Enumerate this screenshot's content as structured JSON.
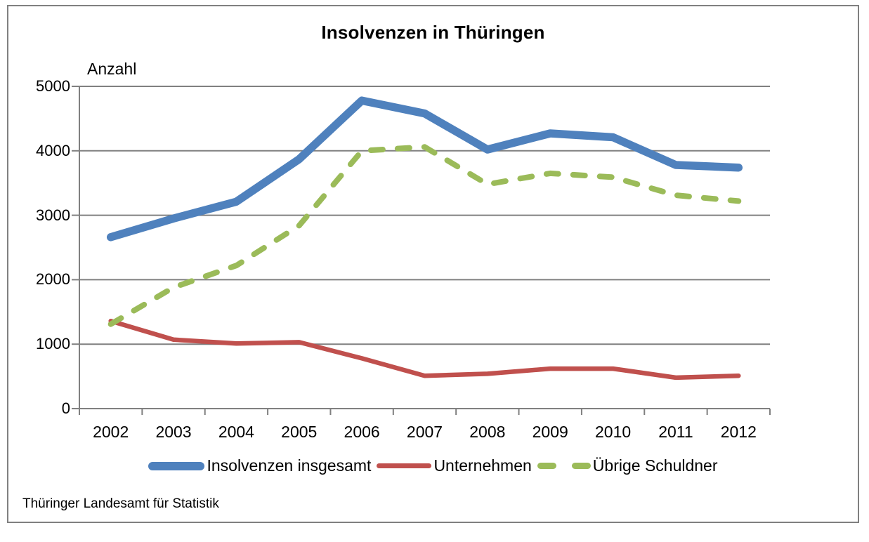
{
  "source": "Thüringer Landesamt für Statistik",
  "colors": {
    "total": "#4F81BD",
    "companies": "#C0504D",
    "other_debtors": "#9BBB59",
    "grid": "#808080",
    "text": "#000000"
  },
  "chart_data": {
    "type": "line",
    "title": "Insolvenzen in Thüringen",
    "ylabel": "Anzahl",
    "xlabel": "",
    "categories": [
      "2002",
      "2003",
      "2004",
      "2005",
      "2006",
      "2007",
      "2008",
      "2009",
      "2010",
      "2011",
      "2012"
    ],
    "series": [
      {
        "name": "Insolvenzen insgesamt",
        "color_key": "total",
        "style": "solid-thick",
        "values": [
          2660,
          2950,
          3210,
          3870,
          4780,
          4580,
          4020,
          4270,
          4210,
          3780,
          3740
        ]
      },
      {
        "name": "Unternehmen",
        "color_key": "companies",
        "style": "solid",
        "values": [
          1360,
          1070,
          1010,
          1030,
          780,
          510,
          540,
          620,
          620,
          480,
          510
        ]
      },
      {
        "name": "Übrige Schuldner",
        "color_key": "other_debtors",
        "style": "dashed",
        "values": [
          1310,
          1880,
          2220,
          2840,
          4000,
          4060,
          3480,
          3650,
          3590,
          3310,
          3220
        ]
      }
    ],
    "ylim": [
      0,
      5000
    ],
    "yticks": [
      0,
      1000,
      2000,
      3000,
      4000,
      5000
    ],
    "grid": true,
    "legend_position": "bottom"
  }
}
